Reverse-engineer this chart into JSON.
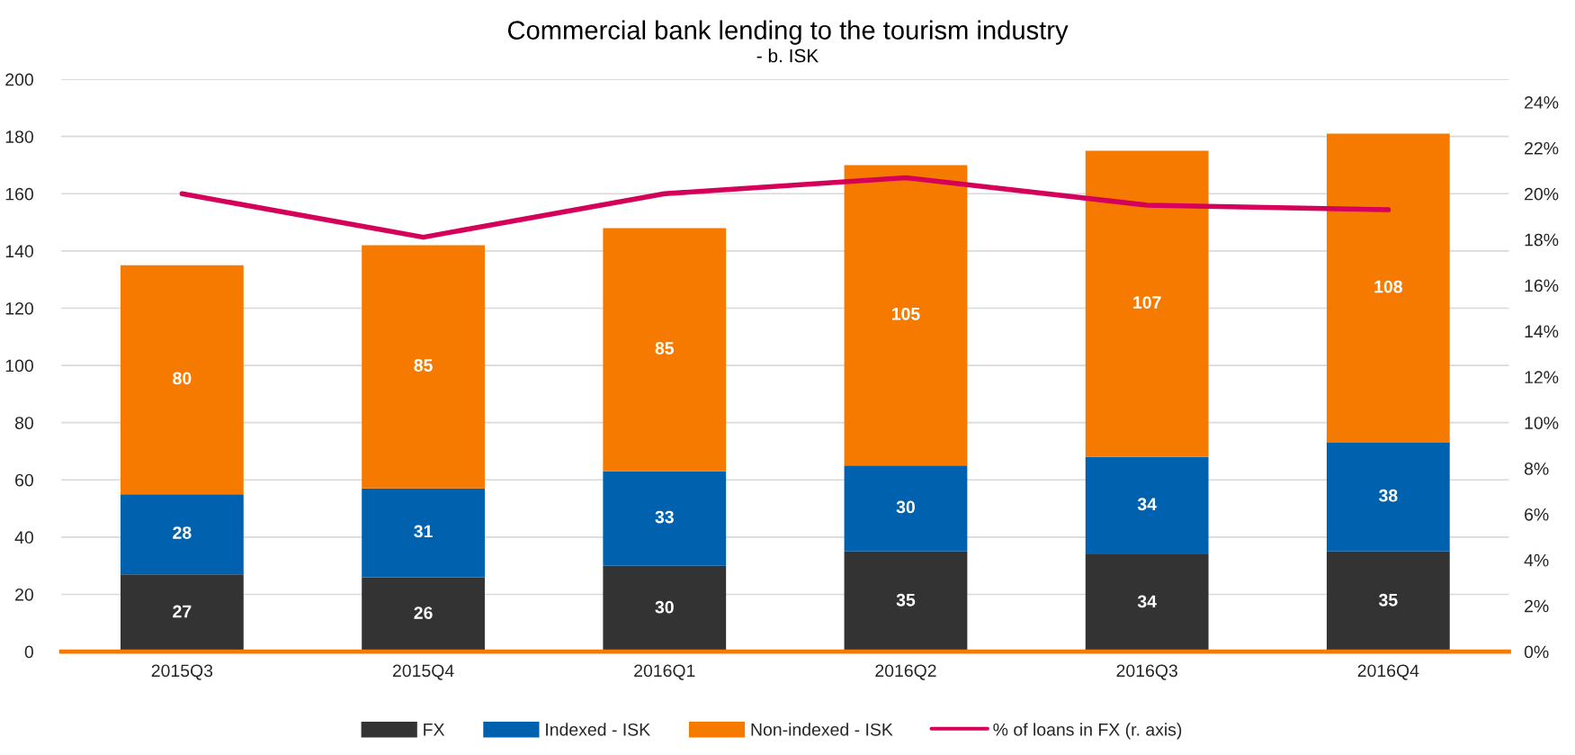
{
  "chart_data": {
    "type": "bar",
    "title": "Commercial bank lending to the tourism industry",
    "subtitle": "- b. ISK",
    "categories": [
      "2015Q3",
      "2015Q4",
      "2016Q1",
      "2016Q2",
      "2016Q3",
      "2016Q4"
    ],
    "stacked": true,
    "grid": "y",
    "legend": "bottom",
    "ylim": [
      0,
      200
    ],
    "yticks": [
      0,
      20,
      40,
      60,
      80,
      100,
      120,
      140,
      160,
      180,
      200
    ],
    "y2lim": [
      0,
      25
    ],
    "y2ticks": [
      {
        "value": 0,
        "label": "0%"
      },
      {
        "value": 2,
        "label": "2%"
      },
      {
        "value": 4,
        "label": "4%"
      },
      {
        "value": 6,
        "label": "6%"
      },
      {
        "value": 8,
        "label": "8%"
      },
      {
        "value": 10,
        "label": "10%"
      },
      {
        "value": 12,
        "label": "12%"
      },
      {
        "value": 14,
        "label": "14%"
      },
      {
        "value": 16,
        "label": "16%"
      },
      {
        "value": 18,
        "label": "18%"
      },
      {
        "value": 20,
        "label": "20%"
      },
      {
        "value": 22,
        "label": "22%"
      },
      {
        "value": 24,
        "label": "24%"
      }
    ],
    "series": [
      {
        "name": "FX",
        "color": "#333333",
        "values": [
          27,
          26,
          30,
          35,
          34,
          35
        ],
        "value_labels": [
          "27",
          "26",
          "30",
          "35",
          "34",
          "35"
        ]
      },
      {
        "name": "Indexed - ISK",
        "color": "#0061af",
        "values": [
          28,
          31,
          33,
          30,
          34,
          38
        ],
        "value_labels": [
          "28",
          "31",
          "33",
          "30",
          "34",
          "38"
        ]
      },
      {
        "name": "Non-indexed - ISK",
        "color": "#f77a00",
        "values": [
          80,
          85,
          85,
          105,
          107,
          108
        ],
        "value_labels": [
          "80",
          "85",
          "85",
          "105",
          "107",
          "108"
        ]
      },
      {
        "name": "% of loans in FX (r. axis)",
        "type": "line",
        "axis": "y2",
        "color": "#d5005a",
        "values": [
          20.0,
          18.1,
          20.0,
          20.7,
          19.5,
          19.3
        ]
      }
    ]
  }
}
